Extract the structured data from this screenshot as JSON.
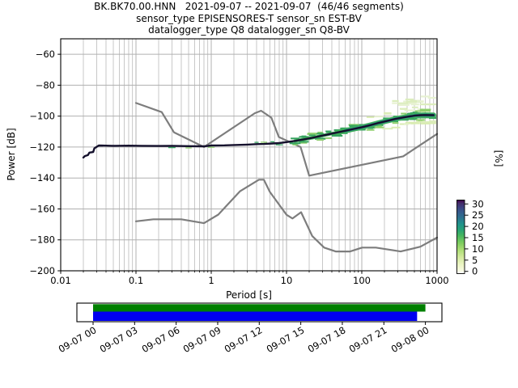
{
  "header": {
    "line1": "BK.BK70.00.HNN   2021-09-07 -- 2021-09-07  (46/46 segments)",
    "line2": "sensor_type EPISENSORES-T sensor_sn EST-BV",
    "line3": "datalogger_type Q8 datalogger_sn Q8-BV"
  },
  "axes": {
    "xlabel": "Period [s]",
    "ylabel": "Power [dB]"
  },
  "chart_data": {
    "type": "line",
    "xscale": "log",
    "xlabel": "Period [s]",
    "ylabel": "Power [dB]",
    "xlim": [
      0.01,
      1000
    ],
    "ylim": [
      -200,
      -50
    ],
    "grid": true,
    "xticks": [
      0.01,
      0.1,
      1,
      10,
      100,
      1000
    ],
    "xtick_labels": [
      "0.01",
      "0.1",
      "1",
      "10",
      "100",
      "1000"
    ],
    "yticks": [
      -60,
      -80,
      -100,
      -120,
      -140,
      -160,
      -180,
      -200
    ],
    "ytick_labels": [
      "−60",
      "−80",
      "−100",
      "−120",
      "−140",
      "−160",
      "−180",
      "−200"
    ],
    "grid_color": "#b0b0b0",
    "series": [
      {
        "name": "noise-model-high-NHNM",
        "color": "#7d7d7d",
        "width": 2.2,
        "points": [
          [
            0.1,
            -91.5
          ],
          [
            0.22,
            -97.4
          ],
          [
            0.32,
            -110.5
          ],
          [
            0.8,
            -120.0
          ],
          [
            3.8,
            -98.1
          ],
          [
            4.6,
            -96.5
          ],
          [
            6.3,
            -101.0
          ],
          [
            7.9,
            -113.5
          ],
          [
            15.4,
            -120.0
          ],
          [
            20.0,
            -138.5
          ],
          [
            354.8,
            -126.0
          ],
          [
            1000,
            -111.5
          ]
        ]
      },
      {
        "name": "noise-model-low-NLNM",
        "color": "#7d7d7d",
        "width": 2.2,
        "points": [
          [
            0.1,
            -168.0
          ],
          [
            0.17,
            -166.7
          ],
          [
            0.4,
            -166.7
          ],
          [
            0.8,
            -169.2
          ],
          [
            1.24,
            -163.7
          ],
          [
            2.4,
            -148.6
          ],
          [
            4.3,
            -141.1
          ],
          [
            5.0,
            -141.1
          ],
          [
            6.0,
            -149.0
          ],
          [
            10.0,
            -163.8
          ],
          [
            12.0,
            -166.2
          ],
          [
            15.6,
            -162.1
          ],
          [
            21.9,
            -177.5
          ],
          [
            31.6,
            -185.0
          ],
          [
            45.0,
            -187.5
          ],
          [
            70.0,
            -187.5
          ],
          [
            101,
            -185.0
          ],
          [
            154,
            -185.0
          ],
          [
            328,
            -187.5
          ],
          [
            600,
            -184.4
          ],
          [
            1000,
            -178.5
          ]
        ]
      },
      {
        "name": "psd-mode-line",
        "color": "#14102c",
        "width": 2.4,
        "points": [
          [
            0.02,
            -126.8
          ],
          [
            0.021,
            -125.8
          ],
          [
            0.023,
            -125.2
          ],
          [
            0.024,
            -123.6
          ],
          [
            0.027,
            -123.2
          ],
          [
            0.028,
            -120.8
          ],
          [
            0.032,
            -119.0
          ],
          [
            0.05,
            -119.2
          ],
          [
            0.08,
            -119.1
          ],
          [
            0.12,
            -119.2
          ],
          [
            0.2,
            -119.3
          ],
          [
            0.3,
            -119.2
          ],
          [
            0.5,
            -119.4
          ],
          [
            0.8,
            -119.5
          ],
          [
            1.0,
            -119.0
          ],
          [
            1.5,
            -118.9
          ],
          [
            2.0,
            -118.7
          ],
          [
            3.0,
            -118.4
          ],
          [
            4.0,
            -118.1
          ],
          [
            5.0,
            -118.0
          ],
          [
            6.5,
            -117.7
          ],
          [
            8.0,
            -117.4
          ],
          [
            10,
            -116.8
          ],
          [
            13,
            -116.0
          ],
          [
            17,
            -115.0
          ],
          [
            22,
            -114.0
          ],
          [
            28,
            -112.9
          ],
          [
            36,
            -111.8
          ],
          [
            47,
            -110.6
          ],
          [
            60,
            -109.5
          ],
          [
            78,
            -108.3
          ],
          [
            100,
            -107.2
          ],
          [
            130,
            -105.8
          ],
          [
            170,
            -104.3
          ],
          [
            220,
            -103.0
          ],
          [
            280,
            -101.8
          ],
          [
            360,
            -100.8
          ],
          [
            430,
            -100.2
          ],
          [
            470,
            -99.9
          ],
          [
            510,
            -99.6
          ],
          [
            600,
            -99.4
          ],
          [
            700,
            -99.3
          ],
          [
            900,
            -99.4
          ]
        ]
      }
    ],
    "histogram_band": {
      "halo_green": "#3fae5a",
      "halo_teal": "#2a9384",
      "mid_green": "#8fcf6d",
      "near_green": "#35a35f",
      "pale": [
        "#dcedbd",
        "#e7f2d2",
        "#d9ecb2"
      ],
      "start_period": 12,
      "wide_period": 100
    },
    "colorbar": {
      "unit": "[%]",
      "min": 0,
      "max": 30,
      "ticks": [
        30,
        25,
        20,
        15,
        10,
        5,
        0
      ],
      "tick_labels": [
        "30",
        "25",
        "20",
        "15",
        "10",
        "5",
        "0"
      ],
      "gradient": [
        [
          "0",
          "#ffffff"
        ],
        [
          "0.05",
          "#f7fadd"
        ],
        [
          "0.13",
          "#eaf4c2"
        ],
        [
          "0.22",
          "#d4ea9f"
        ],
        [
          "0.32",
          "#aede76"
        ],
        [
          "0.42",
          "#7ccc5f"
        ],
        [
          "0.52",
          "#45b55f"
        ],
        [
          "0.60",
          "#26a277"
        ],
        [
          "0.68",
          "#21918c"
        ],
        [
          "0.76",
          "#2d718e"
        ],
        [
          "0.84",
          "#365a8c"
        ],
        [
          "0.90",
          "#3d4380"
        ],
        [
          "0.96",
          "#452c6b"
        ],
        [
          "0.985",
          "#430d54"
        ],
        [
          "1",
          "#2d0a40"
        ]
      ]
    }
  },
  "timeline": {
    "tick_labels": [
      "09-07 00",
      "09-07 03",
      "09-07 06",
      "09-07 09",
      "09-07 12",
      "09-07 15",
      "09-07 18",
      "09-07 21",
      "09-08 00"
    ],
    "coverage_color": "#008000",
    "segments_color": "#0000f0",
    "coverage_end_fraction": 1.0,
    "segments_end_fraction": 0.975
  }
}
